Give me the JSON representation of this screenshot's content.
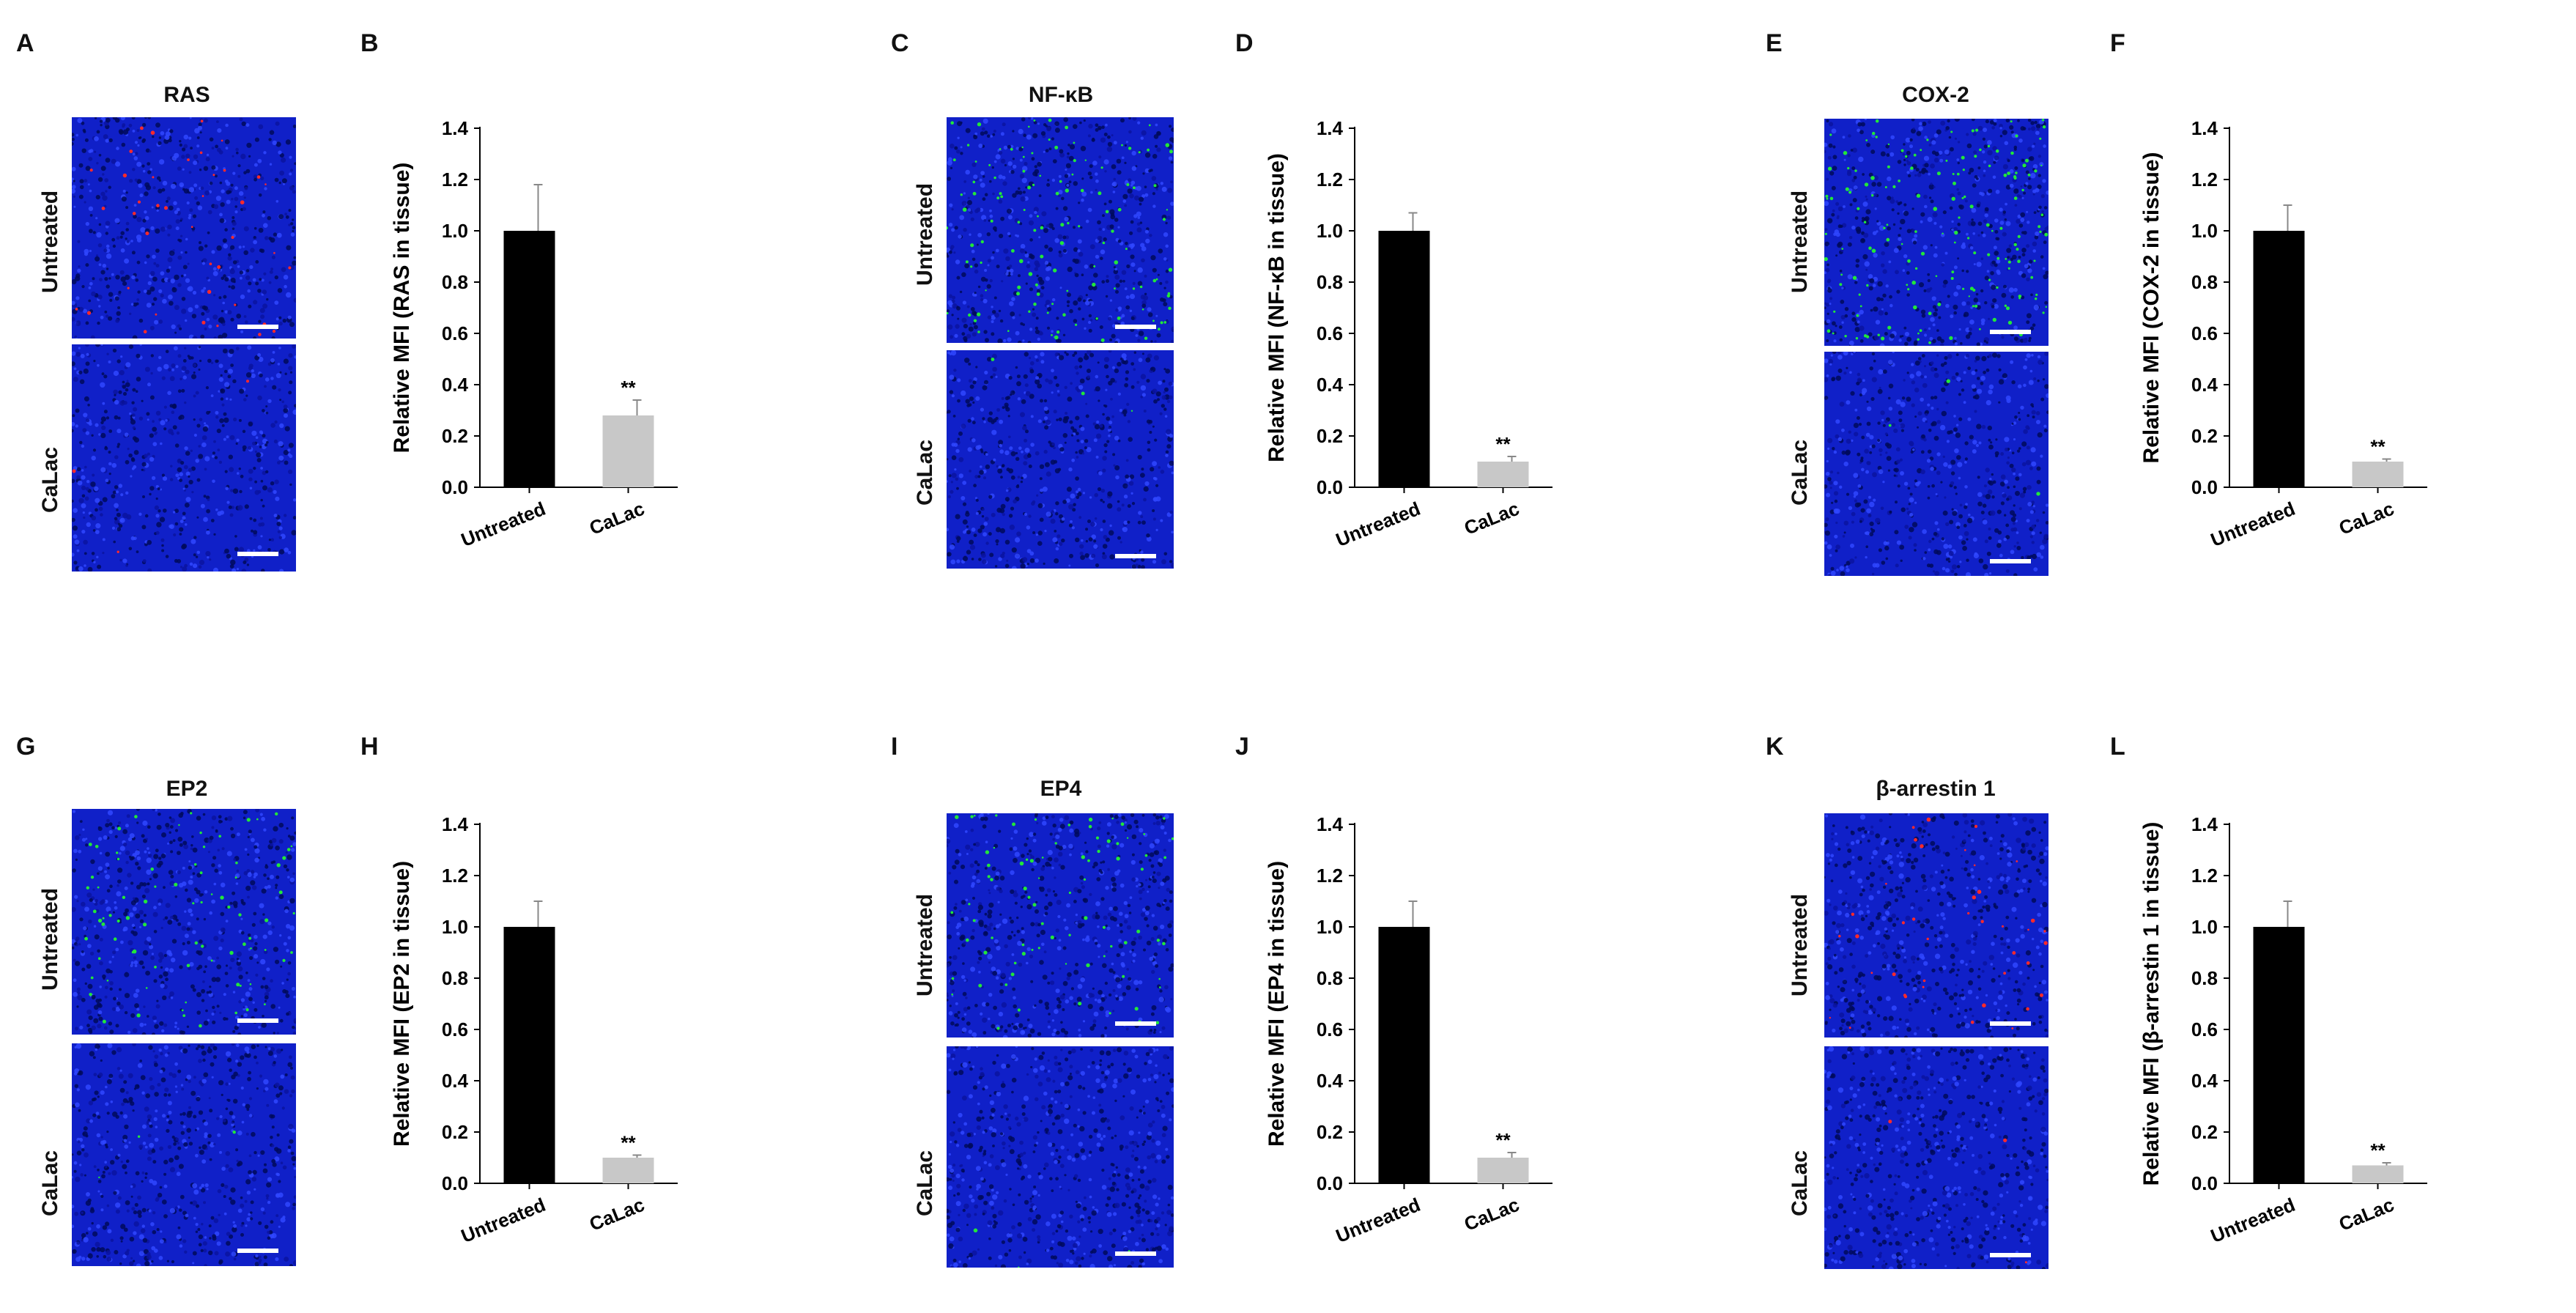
{
  "panels": [
    {
      "letter": "A",
      "title": "RAS",
      "top_label": "Untreated",
      "bottom_label": "CaLac",
      "dot_color": "#ff2a2a",
      "dot_density": 1
    },
    {
      "letter": "C",
      "title": "NF-κB",
      "top_label": "Untreated",
      "bottom_label": "CaLac",
      "dot_color": "#22e63a",
      "dot_density": 3
    },
    {
      "letter": "E",
      "title": "COX-2",
      "top_label": "Untreated",
      "bottom_label": "CaLac",
      "dot_color": "#22e63a",
      "dot_density": 4
    },
    {
      "letter": "G",
      "title": "EP2",
      "top_label": "Untreated",
      "bottom_label": "CaLac",
      "dot_color": "#22e63a",
      "dot_density": 2
    },
    {
      "letter": "I",
      "title": "EP4",
      "top_label": "Untreated",
      "bottom_label": "CaLac",
      "dot_color": "#22e63a",
      "dot_density": 2
    },
    {
      "letter": "K",
      "title": "β-arrestin 1",
      "top_label": "Untreated",
      "bottom_label": "CaLac",
      "dot_color": "#ff2a2a",
      "dot_density": 1
    }
  ],
  "chart_data": [
    {
      "letter": "B",
      "type": "bar",
      "ylabel": "Relative MFI (RAS in tissue)",
      "categories": [
        "Untreated",
        "CaLac"
      ],
      "values": [
        1.0,
        0.28
      ],
      "errors": [
        0.18,
        0.06
      ],
      "significance": [
        "",
        "**"
      ],
      "ylim": [
        0,
        1.4
      ],
      "yticks": [
        "0.0",
        "0.2",
        "0.4",
        "0.6",
        "0.8",
        "1.0",
        "1.2",
        "1.4"
      ],
      "colors": [
        "#000000",
        "#c8c8c8"
      ]
    },
    {
      "letter": "D",
      "type": "bar",
      "ylabel": "Relative MFI (NF-κB in tissue)",
      "categories": [
        "Untreated",
        "CaLac"
      ],
      "values": [
        1.0,
        0.1
      ],
      "errors": [
        0.07,
        0.02
      ],
      "significance": [
        "",
        "**"
      ],
      "ylim": [
        0,
        1.4
      ],
      "yticks": [
        "0.0",
        "0.2",
        "0.4",
        "0.6",
        "0.8",
        "1.0",
        "1.2",
        "1.4"
      ],
      "colors": [
        "#000000",
        "#c8c8c8"
      ]
    },
    {
      "letter": "F",
      "type": "bar",
      "ylabel": "Relative MFI (COX-2 in tissue)",
      "categories": [
        "Untreated",
        "CaLac"
      ],
      "values": [
        1.0,
        0.1
      ],
      "errors": [
        0.1,
        0.01
      ],
      "significance": [
        "",
        "**"
      ],
      "ylim": [
        0,
        1.4
      ],
      "yticks": [
        "0.0",
        "0.2",
        "0.4",
        "0.6",
        "0.8",
        "1.0",
        "1.2",
        "1.4"
      ],
      "colors": [
        "#000000",
        "#c8c8c8"
      ]
    },
    {
      "letter": "H",
      "type": "bar",
      "ylabel": "Relative MFI (EP2 in tissue)",
      "categories": [
        "Untreated",
        "CaLac"
      ],
      "values": [
        1.0,
        0.1
      ],
      "errors": [
        0.1,
        0.01
      ],
      "significance": [
        "",
        "**"
      ],
      "ylim": [
        0,
        1.4
      ],
      "yticks": [
        "0.0",
        "0.2",
        "0.4",
        "0.6",
        "0.8",
        "1.0",
        "1.2",
        "1.4"
      ],
      "colors": [
        "#000000",
        "#c8c8c8"
      ]
    },
    {
      "letter": "J",
      "type": "bar",
      "ylabel": "Relative MFI (EP4 in tissue)",
      "categories": [
        "Untreated",
        "CaLac"
      ],
      "values": [
        1.0,
        0.1
      ],
      "errors": [
        0.1,
        0.02
      ],
      "significance": [
        "",
        "**"
      ],
      "ylim": [
        0,
        1.4
      ],
      "yticks": [
        "0.0",
        "0.2",
        "0.4",
        "0.6",
        "0.8",
        "1.0",
        "1.2",
        "1.4"
      ],
      "colors": [
        "#000000",
        "#c8c8c8"
      ]
    },
    {
      "letter": "L",
      "type": "bar",
      "ylabel": "Relative MFI (β-arrestin 1 in tissue)",
      "categories": [
        "Untreated",
        "CaLac"
      ],
      "values": [
        1.0,
        0.07
      ],
      "errors": [
        0.1,
        0.01
      ],
      "significance": [
        "",
        "**"
      ],
      "ylim": [
        0,
        1.4
      ],
      "yticks": [
        "0.0",
        "0.2",
        "0.4",
        "0.6",
        "0.8",
        "1.0",
        "1.2",
        "1.4"
      ],
      "colors": [
        "#000000",
        "#c8c8c8"
      ]
    }
  ]
}
